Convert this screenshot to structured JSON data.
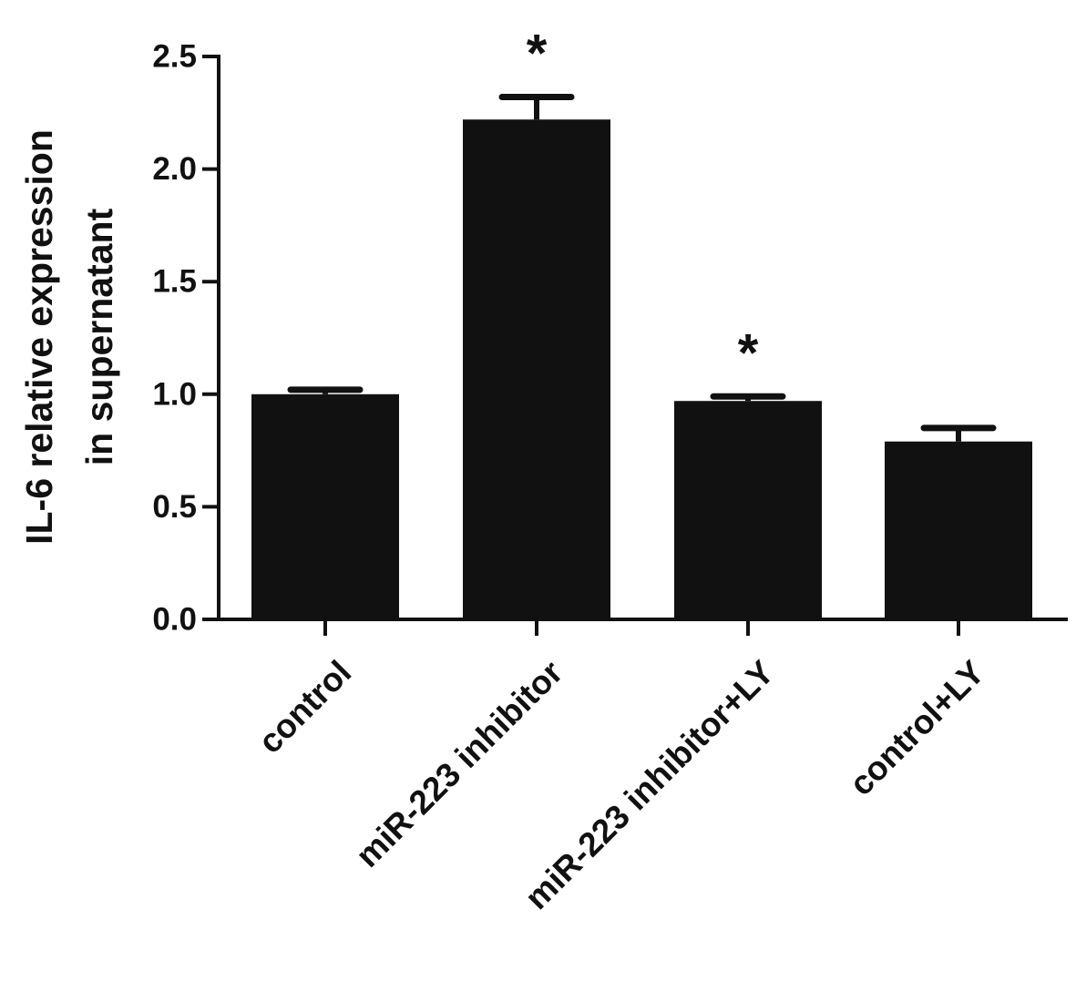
{
  "chart_data": {
    "type": "bar",
    "title": "",
    "xlabel": "",
    "ylabel_lines": [
      "IL-6 relative expression",
      "in supernatant"
    ],
    "categories": [
      "control",
      "miR-223 inhibitor",
      "miR-223 inhibitor+LY",
      "control+LY"
    ],
    "values": [
      1.0,
      2.22,
      0.97,
      0.79
    ],
    "errors": [
      0.02,
      0.1,
      0.02,
      0.06
    ],
    "annotations": [
      "",
      "*",
      "*",
      ""
    ],
    "ylim": [
      0,
      2.5
    ],
    "yticks": [
      0.0,
      0.5,
      1.0,
      1.5,
      2.0,
      2.5
    ],
    "ytick_labels": [
      "0.0",
      "0.5",
      "1.0",
      "1.5",
      "2.0",
      "2.5"
    ],
    "grid": false,
    "colors": {
      "bar": "#111111",
      "axis": "#111111",
      "background": "#ffffff"
    }
  }
}
